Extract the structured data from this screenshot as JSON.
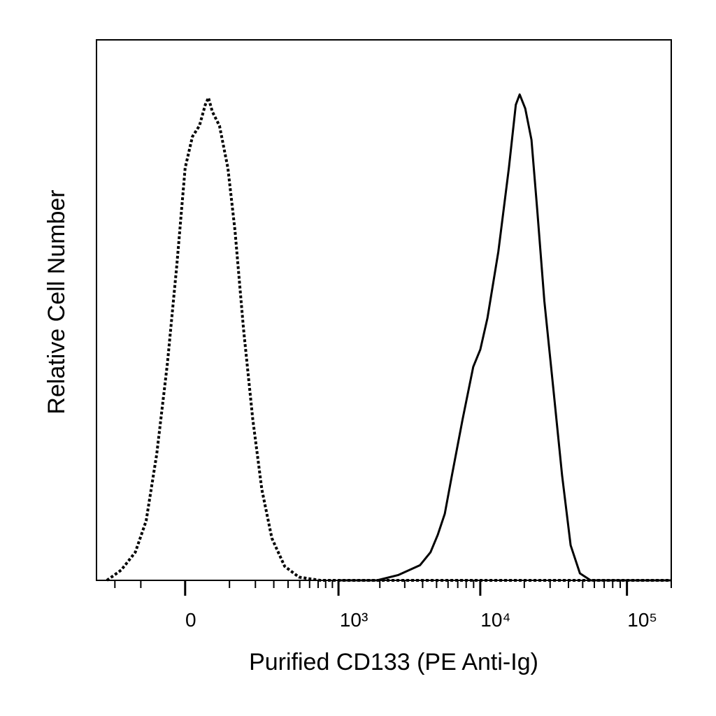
{
  "chart_data": {
    "type": "line",
    "xlabel": "Purified CD133 (PE Anti-Ig)",
    "ylabel": "Relative Cell Number",
    "xscale": "biexponential",
    "xlim": [
      -300,
      200000
    ],
    "ylim": [
      0,
      100
    ],
    "xticks": [
      0,
      {
        "value": 1000,
        "label": "10³"
      },
      {
        "value": 10000,
        "label": "10⁴"
      },
      {
        "value": 100000,
        "label": "10⁵"
      }
    ],
    "minor_xticks": [
      -200,
      -100,
      100,
      200,
      300,
      400,
      500,
      600,
      700,
      800,
      900,
      2000,
      3000,
      4000,
      5000,
      6000,
      7000,
      8000,
      9000,
      20000,
      30000,
      40000,
      50000,
      60000,
      70000,
      80000,
      90000,
      200000
    ],
    "series": [
      {
        "color": "#000000",
        "style": "dotted",
        "x": [
          -240,
          -172,
          -118,
          -84,
          -56,
          -32,
          -14,
          0,
          12,
          25,
          37,
          44,
          53,
          71,
          95,
          118,
          149,
          188,
          232,
          288,
          374,
          493,
          728,
          1190,
          3830,
          200000
        ],
        "values": [
          0,
          1.9,
          5.2,
          11,
          23.3,
          40.1,
          58.2,
          76.3,
          82.1,
          84.1,
          88,
          89.3,
          86.7,
          84.1,
          76.3,
          64.7,
          46.6,
          29.8,
          16.8,
          7.8,
          2.6,
          0.6,
          0,
          0,
          0,
          0
        ]
      },
      {
        "color": "#000000",
        "style": "solid",
        "x": [
          1000,
          1910,
          2710,
          3830,
          4540,
          5090,
          5700,
          6380,
          7560,
          8950,
          10000,
          11200,
          13300,
          15700,
          17500,
          18600,
          20300,
          22400,
          24500,
          27400,
          31700,
          36200,
          41400,
          47900,
          56600,
          88400,
          200000
        ],
        "values": [
          0,
          0,
          1,
          2.8,
          5.2,
          8.4,
          12.3,
          19.4,
          29.8,
          39.5,
          42.7,
          48.5,
          60.8,
          76.3,
          88,
          89.9,
          87.3,
          81.5,
          68.6,
          51.7,
          34.9,
          19.4,
          6.5,
          1.3,
          0,
          0,
          0
        ]
      }
    ]
  }
}
